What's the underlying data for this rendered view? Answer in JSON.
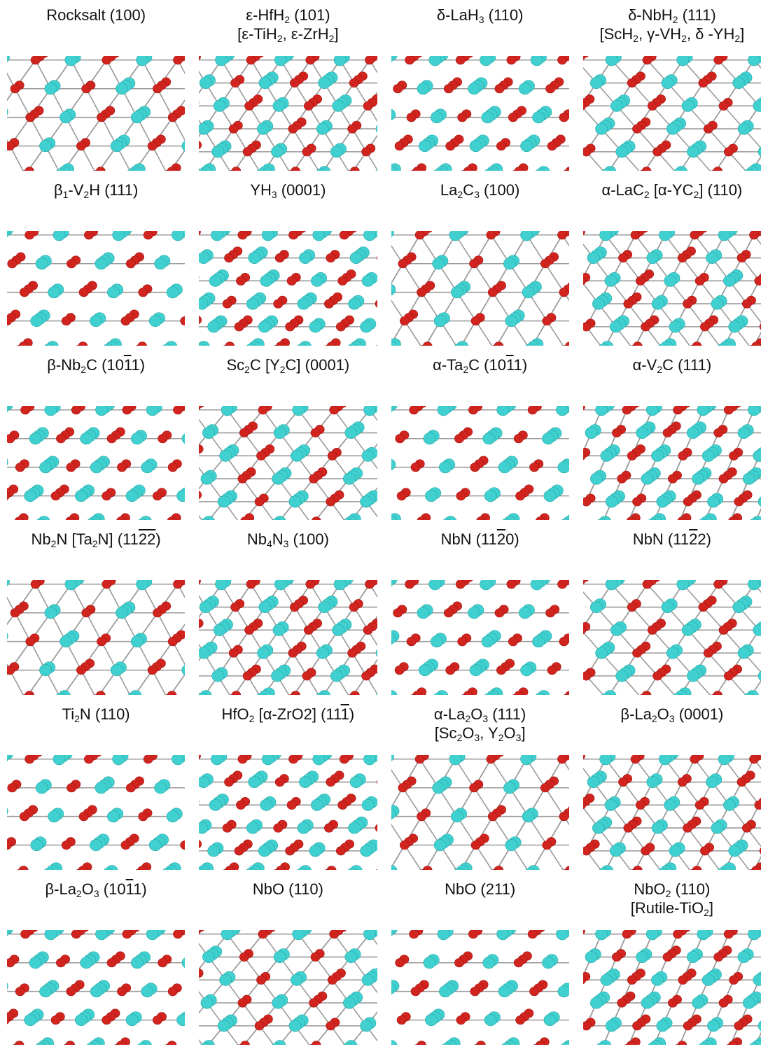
{
  "panels": [
    {
      "title": [
        "Rocksalt (100)"
      ],
      "colors": {
        "metal": "#3fd0cf",
        "nonmetal": "#d2241f"
      }
    },
    {
      "title": [
        "ε-HfH_2 (101)",
        "[ε-TiH_2, ε-ZrH_2]"
      ],
      "colors": {
        "metal": "#3fd0cf",
        "nonmetal": "#d2241f"
      }
    },
    {
      "title": [
        "δ-LaH_3 (110)"
      ],
      "colors": {
        "metal": "#3fd0cf",
        "nonmetal": "#d2241f"
      }
    },
    {
      "title": [
        "δ-NbH_2 (111)",
        "[ScH_2, γ-VH_2, δ -YH_2]"
      ],
      "colors": {
        "metal": "#3fd0cf",
        "nonmetal": "#d2241f"
      }
    },
    {
      "title": [
        "β_1-V_2H (111)"
      ],
      "colors": {
        "metal": "#3fd0cf",
        "nonmetal": "#d2241f"
      }
    },
    {
      "title": [
        "YH_3 (0001)"
      ],
      "colors": {
        "metal": "#3fd0cf",
        "nonmetal": "#d2241f"
      }
    },
    {
      "title": [
        "La_2C_3 (100)"
      ],
      "colors": {
        "metal": "#3fd0cf",
        "nonmetal": "#d2241f"
      }
    },
    {
      "title": [
        "α-LaC_2 [α-YC_2] (110)"
      ],
      "colors": {
        "metal": "#3fd0cf",
        "nonmetal": "#d2241f"
      }
    },
    {
      "title": [
        "β-Nb_2C (10~1~1)"
      ],
      "colors": {
        "metal": "#3fd0cf",
        "nonmetal": "#d2241f"
      }
    },
    {
      "title": [
        "Sc_2C [Y_2C] (0001)"
      ],
      "colors": {
        "metal": "#3fd0cf",
        "nonmetal": "#d2241f"
      }
    },
    {
      "title": [
        "α-Ta_2C (10~1~1)"
      ],
      "colors": {
        "metal": "#3fd0cf",
        "nonmetal": "#d2241f"
      }
    },
    {
      "title": [
        "α-V_2C (111)"
      ],
      "colors": {
        "metal": "#3fd0cf",
        "nonmetal": "#d2241f"
      }
    },
    {
      "title": [
        "Nb_2N [Ta_2N] (11~22~)"
      ],
      "colors": {
        "metal": "#3fd0cf",
        "nonmetal": "#d2241f"
      }
    },
    {
      "title": [
        "Nb_4N_3 (100)"
      ],
      "colors": {
        "metal": "#3fd0cf",
        "nonmetal": "#d2241f"
      }
    },
    {
      "title": [
        "NbN (11~2~0)"
      ],
      "colors": {
        "metal": "#3fd0cf",
        "nonmetal": "#d2241f"
      }
    },
    {
      "title": [
        "NbN (11~2~2)"
      ],
      "colors": {
        "metal": "#3fd0cf",
        "nonmetal": "#d2241f"
      }
    },
    {
      "title": [
        "Ti_2N (110)"
      ],
      "colors": {
        "metal": "#3fd0cf",
        "nonmetal": "#d2241f"
      }
    },
    {
      "title": [
        "HfO_2 [α-ZrO2] (11~1~)"
      ],
      "colors": {
        "metal": "#3fd0cf",
        "nonmetal": "#d2241f"
      }
    },
    {
      "title": [
        "α-La_2O_3 (111)",
        "[Sc_2O_3, Y_2O_3]"
      ],
      "colors": {
        "metal": "#3fd0cf",
        "nonmetal": "#d2241f"
      }
    },
    {
      "title": [
        "β-La_2O_3 (0001)"
      ],
      "colors": {
        "metal": "#3fd0cf",
        "nonmetal": "#d2241f"
      }
    },
    {
      "title": [
        "β-La_2O_3 (10~1~1)"
      ],
      "colors": {
        "metal": "#3fd0cf",
        "nonmetal": "#d2241f"
      }
    },
    {
      "title": [
        "NbO (110)"
      ],
      "colors": {
        "metal": "#3fd0cf",
        "nonmetal": "#d2241f"
      }
    },
    {
      "title": [
        "NbO (211)"
      ],
      "colors": {
        "metal": "#3fd0cf",
        "nonmetal": "#d2241f"
      }
    },
    {
      "title": [
        "NbO_2 (110)",
        "[Rutile-TiO_2]"
      ],
      "colors": {
        "metal": "#3fd0cf",
        "nonmetal": "#d2241f"
      }
    }
  ]
}
